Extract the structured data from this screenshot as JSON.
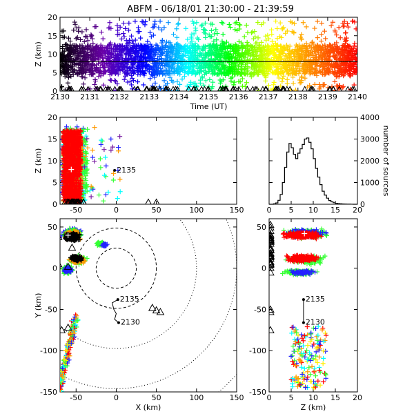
{
  "title": "ABFM - 06/18/01 21:30:00 - 21:39:59",
  "colors": {
    "axis": "#000000",
    "red": "#ff0000",
    "green": "#33ff33",
    "cyan": "#00ffff",
    "blue": "#2222ff",
    "purple": "#7a1fa2",
    "orange": "#ff9900",
    "yellow": "#ffee00",
    "black": "#000000",
    "white": "#ffffff"
  },
  "chart_data": [
    {
      "id": "time_height",
      "type": "scatter",
      "xlabel": "Time (UT)",
      "ylabel": "Z (km)",
      "xlim": [
        2130,
        2140
      ],
      "ylim": [
        0,
        20
      ],
      "xticks": [
        "2130",
        "2131",
        "2132",
        "2133",
        "2134",
        "2135",
        "2136",
        "2137",
        "2138",
        "2139",
        "2140"
      ],
      "yticks": [
        "0",
        "5",
        "10",
        "15",
        "20"
      ],
      "hline_y": 8,
      "band_z": [
        4.5,
        12.5
      ],
      "colorscale": [
        "#000000",
        "#6a00a8",
        "#0000ff",
        "#00ffff",
        "#00ff00",
        "#ffff00",
        "#ff8000",
        "#ff0000"
      ]
    },
    {
      "id": "x_height",
      "type": "scatter",
      "xlabel": "",
      "ylabel": "Z (km)",
      "xlim": [
        -70,
        150
      ],
      "ylim": [
        0,
        20
      ],
      "xticks": [
        "-50",
        "0",
        "50",
        "100",
        "150"
      ],
      "yticks": [
        "0",
        "5",
        "10",
        "15",
        "20"
      ],
      "annotation": "2135",
      "annotation_at": [
        -2,
        7.8
      ]
    },
    {
      "id": "height_histogram",
      "type": "line",
      "xlabel": "",
      "ylabel": "number of sources",
      "xlim": [
        0,
        20
      ],
      "ylim": [
        0,
        4000
      ],
      "xticks": [
        "0",
        "5",
        "10",
        "15",
        "20"
      ],
      "yticks": [
        "0",
        "1000",
        "2000",
        "3000",
        "4000"
      ],
      "x": [
        0,
        0.5,
        1,
        1.5,
        2,
        2.5,
        3,
        3.5,
        4,
        4.5,
        5,
        5.5,
        6,
        6.5,
        7,
        7.5,
        8,
        8.5,
        9,
        9.5,
        10,
        10.5,
        11,
        11.5,
        12,
        12.5,
        13,
        13.5,
        14,
        14.5,
        15,
        15.5,
        16,
        16.5,
        17,
        17.5,
        18,
        18.5,
        19,
        19.5,
        20
      ],
      "values": [
        0,
        0,
        20,
        60,
        180,
        450,
        1000,
        1700,
        2400,
        2800,
        2600,
        2300,
        2100,
        2350,
        2550,
        2750,
        3000,
        3050,
        2850,
        2550,
        2100,
        1650,
        1250,
        900,
        600,
        420,
        280,
        170,
        110,
        70,
        45,
        30,
        20,
        12,
        8,
        5,
        3,
        2,
        1,
        0,
        0
      ]
    },
    {
      "id": "plan_view",
      "type": "scatter",
      "xlabel": "X (km)",
      "ylabel": "Y (km)",
      "xlim": [
        -70,
        150
      ],
      "ylim": [
        -150,
        60
      ],
      "xticks": [
        "-50",
        "0",
        "50",
        "100",
        "150"
      ],
      "yticks": [
        "-150",
        "-100",
        "-50",
        "0",
        "50"
      ],
      "range_rings_km": [
        25,
        50,
        100,
        150,
        200
      ],
      "stations": [
        [
          -72,
          38
        ],
        [
          -72,
          5
        ],
        [
          -60,
          2
        ],
        [
          -55,
          25
        ],
        [
          45,
          -48
        ],
        [
          50,
          -51
        ],
        [
          55,
          -53
        ],
        [
          -68,
          -75
        ],
        [
          -60,
          -72
        ]
      ],
      "track_labels": [
        "2135",
        "2130"
      ],
      "track_points": [
        [
          2,
          -38
        ],
        [
          -5,
          -42
        ],
        [
          -3,
          -50
        ],
        [
          0,
          -55
        ],
        [
          -2,
          -62
        ],
        [
          3,
          -66
        ]
      ]
    },
    {
      "id": "height_y",
      "type": "scatter",
      "xlabel": "Z (km)",
      "ylabel": "",
      "xlim": [
        0,
        20
      ],
      "ylim": [
        -150,
        60
      ],
      "xticks": [
        "0",
        "5",
        "10",
        "15",
        "20"
      ],
      "yticks": [
        "-150",
        "-100",
        "-50",
        "0",
        "50"
      ],
      "track_labels": [
        "2135",
        "2130"
      ],
      "track_x": [
        7.8,
        7.8,
        7.8
      ],
      "track_y": [
        -38,
        -52,
        -66
      ]
    }
  ]
}
